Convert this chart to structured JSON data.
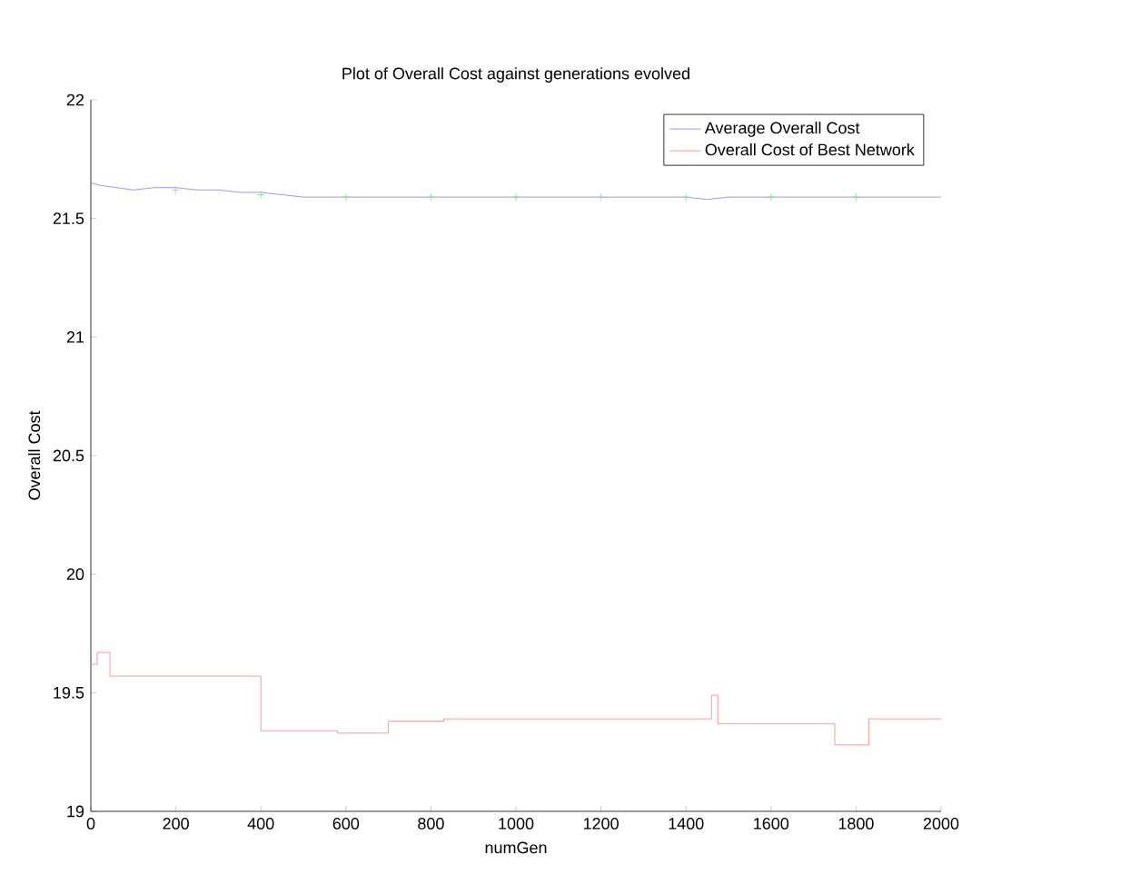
{
  "chart_data": {
    "type": "line",
    "title": "Plot of Overall Cost against generations evolved",
    "xlabel": "numGen",
    "ylabel": "Overall Cost",
    "xlim": [
      0,
      2000
    ],
    "xticks": [
      0,
      200,
      400,
      600,
      800,
      1000,
      1200,
      1400,
      1600,
      1800,
      2000
    ],
    "ylim": [
      19,
      22
    ],
    "yticks": [
      19,
      19.5,
      20,
      20.5,
      21,
      21.5,
      22
    ],
    "legend": "top right",
    "grid": false,
    "series": [
      {
        "name": "Average Overall Cost",
        "color": "#7f7fff",
        "x": [
          0,
          20,
          60,
          100,
          150,
          200,
          250,
          300,
          350,
          400,
          450,
          500,
          600,
          700,
          800,
          900,
          1000,
          1100,
          1200,
          1300,
          1400,
          1450,
          1500,
          1600,
          1700,
          1800,
          1900,
          2000
        ],
        "values": [
          21.65,
          21.64,
          21.63,
          21.62,
          21.63,
          21.63,
          21.62,
          21.62,
          21.61,
          21.61,
          21.6,
          21.59,
          21.59,
          21.59,
          21.59,
          21.59,
          21.59,
          21.59,
          21.59,
          21.59,
          21.59,
          21.58,
          21.59,
          21.59,
          21.59,
          21.59,
          21.59,
          21.59
        ]
      },
      {
        "name": "Overall Cost of Best Network",
        "type": "step",
        "color": "#ff7f7f",
        "x": [
          0,
          15,
          45,
          400,
          580,
          700,
          830,
          1460,
          1475,
          1750,
          1830,
          2000
        ],
        "values": [
          19.62,
          19.67,
          19.57,
          19.34,
          19.33,
          19.38,
          19.39,
          19.49,
          19.37,
          19.28,
          19.39,
          19.39
        ]
      },
      {
        "type": "scatter",
        "color": "#7fdf7f",
        "marker": "cross",
        "x": [
          200,
          400,
          600,
          800,
          1000,
          1200,
          1400,
          1600,
          1800
        ],
        "values": [
          21.62,
          21.6,
          21.59,
          21.59,
          21.59,
          21.59,
          21.59,
          21.59,
          21.59
        ]
      }
    ]
  }
}
